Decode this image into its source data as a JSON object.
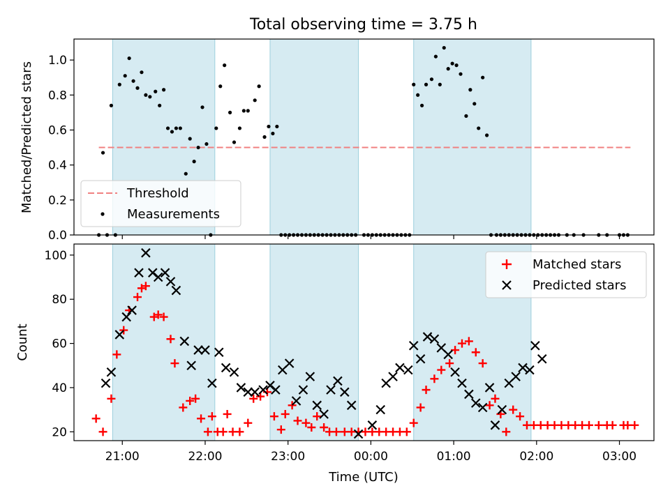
{
  "figure": {
    "title": "Total observing time = 3.75 h",
    "xlabel": "Time (UTC)",
    "x_ticks": [
      "21:00",
      "22:00",
      "23:00",
      "00:00",
      "01:00",
      "02:00",
      "03:00"
    ]
  },
  "chart_data": [
    {
      "type": "scatter",
      "ylabel": "Matched/Predicted stars",
      "ylim": [
        0,
        1.12
      ],
      "xlim": [
        "20:25",
        "03:25"
      ],
      "y_ticks": [
        "0.0",
        "0.2",
        "0.4",
        "0.6",
        "0.8",
        "1.0"
      ],
      "grid": false,
      "legend_position": "lower-left",
      "shaded_intervals": [
        [
          "20:53",
          "22:07"
        ],
        [
          "22:47",
          "23:51"
        ],
        [
          "00:31",
          "01:56"
        ]
      ],
      "threshold": {
        "name": "Threshold",
        "value": 0.5,
        "x_start": "20:43",
        "x_end": "03:08",
        "color": "#f08080"
      },
      "series": [
        {
          "name": "Measurements",
          "color": "#000000",
          "marker": "dot",
          "x": [
            "20:43",
            "20:46",
            "20:49",
            "20:52",
            "20:55",
            "20:58",
            "21:02",
            "21:05",
            "21:08",
            "21:11",
            "21:14",
            "21:17",
            "21:20",
            "21:24",
            "21:27",
            "21:30",
            "21:33",
            "21:36",
            "21:39",
            "21:42",
            "21:46",
            "21:49",
            "21:52",
            "21:55",
            "21:58",
            "22:01",
            "22:04",
            "22:08",
            "22:11",
            "22:14",
            "22:18",
            "22:21",
            "22:25",
            "22:28",
            "22:31",
            "22:36",
            "22:39",
            "22:43",
            "22:46",
            "22:49",
            "22:52",
            "22:55",
            "22:58",
            "23:01",
            "23:04",
            "23:07",
            "23:10",
            "23:13",
            "23:16",
            "23:19",
            "23:22",
            "23:25",
            "23:28",
            "23:31",
            "23:34",
            "23:37",
            "23:40",
            "23:43",
            "23:46",
            "23:49",
            "23:55",
            "23:58",
            "00:01",
            "00:04",
            "00:07",
            "00:10",
            "00:13",
            "00:16",
            "00:19",
            "00:22",
            "00:25",
            "00:28",
            "00:31",
            "00:34",
            "00:37",
            "00:40",
            "00:44",
            "00:47",
            "00:50",
            "00:53",
            "00:56",
            "00:59",
            "01:02",
            "01:05",
            "01:09",
            "01:12",
            "01:15",
            "01:18",
            "01:21",
            "01:24",
            "01:27",
            "01:31",
            "01:34",
            "01:37",
            "01:40",
            "01:43",
            "01:46",
            "01:49",
            "01:52",
            "01:55",
            "01:58",
            "02:01",
            "02:04",
            "02:07",
            "02:10",
            "02:13",
            "02:16",
            "02:22",
            "02:27",
            "02:34",
            "02:45",
            "02:51",
            "03:00",
            "03:03",
            "03:06"
          ],
          "y": [
            0.0,
            0.47,
            0.0,
            0.74,
            0.0,
            0.86,
            0.91,
            1.01,
            0.88,
            0.84,
            0.93,
            0.8,
            0.79,
            0.82,
            0.74,
            0.83,
            0.61,
            0.59,
            0.61,
            0.61,
            0.35,
            0.55,
            0.42,
            0.5,
            0.73,
            0.52,
            0.0,
            0.61,
            0.85,
            0.97,
            0.7,
            0.53,
            0.61,
            0.71,
            0.71,
            0.77,
            0.85,
            0.56,
            0.62,
            0.58,
            0.62,
            0.0,
            0.0,
            0.0,
            0.0,
            0.0,
            0.0,
            0.0,
            0.0,
            0.0,
            0.0,
            0.0,
            0.0,
            0.0,
            0.0,
            0.0,
            0.0,
            0.0,
            0.0,
            0.0,
            0.0,
            0.0,
            0.0,
            0.0,
            0.0,
            0.0,
            0.0,
            0.0,
            0.0,
            0.0,
            0.0,
            0.0,
            0.86,
            0.8,
            0.74,
            0.86,
            0.89,
            1.02,
            0.86,
            1.07,
            0.95,
            0.98,
            0.97,
            0.92,
            0.68,
            0.83,
            0.75,
            0.61,
            0.9,
            0.57,
            0.0,
            0.0,
            0.0,
            0.0,
            0.0,
            0.0,
            0.0,
            0.0,
            0.0,
            0.0,
            0.0,
            0.0,
            0.0,
            0.0,
            0.0,
            0.0,
            0.0,
            0.0,
            0.0,
            0.0,
            0.0,
            0.0,
            0.0,
            0.0,
            0.0
          ]
        }
      ]
    },
    {
      "type": "scatter",
      "ylabel": "Count",
      "ylim": [
        16,
        105
      ],
      "xlim": [
        "20:25",
        "03:25"
      ],
      "y_ticks": [
        "20",
        "40",
        "60",
        "80",
        "100"
      ],
      "grid": false,
      "legend_position": "top-right",
      "shaded_intervals": [
        [
          "20:53",
          "22:07"
        ],
        [
          "22:47",
          "23:51"
        ],
        [
          "00:31",
          "01:56"
        ]
      ],
      "series": [
        {
          "name": "Matched stars",
          "color": "#ff0000",
          "marker": "plus",
          "x": [
            "20:41",
            "20:46",
            "20:52",
            "20:56",
            "21:01",
            "21:05",
            "21:11",
            "21:14",
            "21:17",
            "21:23",
            "21:26",
            "21:30",
            "21:35",
            "21:38",
            "21:44",
            "21:49",
            "21:53",
            "21:57",
            "22:02",
            "22:05",
            "22:09",
            "22:13",
            "22:16",
            "22:20",
            "22:25",
            "22:31",
            "22:35",
            "22:40",
            "22:45",
            "22:50",
            "22:55",
            "22:58",
            "23:03",
            "23:07",
            "23:13",
            "23:17",
            "23:21",
            "23:26",
            "23:30",
            "23:35",
            "23:41",
            "23:46",
            "23:51",
            "23:56",
            "24:01",
            "24:06",
            "24:11",
            "24:16",
            "24:21",
            "24:26",
            "24:31",
            "24:36",
            "24:40",
            "24:46",
            "24:51",
            "24:57",
            "25:01",
            "25:06",
            "25:11",
            "25:16",
            "25:21",
            "25:26",
            "25:30",
            "25:34",
            "25:38",
            "25:43",
            "25:48",
            "25:53",
            "25:58",
            "26:03",
            "26:08",
            "26:13",
            "26:18",
            "26:23",
            "26:28",
            "26:33",
            "26:38",
            "26:45",
            "26:51",
            "26:55",
            "27:03",
            "27:06",
            "27:11"
          ],
          "y": [
            26,
            20,
            35,
            55,
            66,
            75,
            81,
            85,
            86,
            72,
            73,
            72,
            62,
            51,
            31,
            34,
            35,
            26,
            20,
            27,
            20,
            20,
            28,
            20,
            20,
            24,
            35,
            36,
            38,
            27,
            21,
            28,
            32,
            25,
            24,
            22,
            27,
            22,
            20,
            20,
            20,
            20,
            20,
            20,
            20,
            20,
            20,
            20,
            20,
            20,
            24,
            31,
            39,
            44,
            48,
            51,
            57,
            60,
            61,
            56,
            51,
            32,
            35,
            28,
            20,
            30,
            27,
            23,
            23,
            23,
            23,
            23,
            23,
            23,
            23,
            23,
            23,
            23,
            23,
            23,
            23,
            23,
            23
          ]
        },
        {
          "name": "Predicted stars",
          "color": "#000000",
          "marker": "x",
          "x": [
            "20:48",
            "20:52",
            "20:58",
            "21:03",
            "21:07",
            "21:12",
            "21:17",
            "21:22",
            "21:26",
            "21:31",
            "21:35",
            "21:39",
            "21:45",
            "21:50",
            "21:55",
            "22:00",
            "22:05",
            "22:10",
            "22:15",
            "22:21",
            "22:26",
            "22:31",
            "22:36",
            "22:42",
            "22:47",
            "22:51",
            "22:56",
            "23:01",
            "23:06",
            "23:11",
            "23:16",
            "23:21",
            "23:26",
            "23:31",
            "23:36",
            "23:41",
            "23:46",
            "23:51",
            "24:01",
            "24:07",
            "24:11",
            "24:16",
            "24:21",
            "24:27",
            "24:31",
            "24:36",
            "24:41",
            "24:46",
            "24:51",
            "24:56",
            "25:01",
            "25:06",
            "25:11",
            "25:16",
            "25:21",
            "25:26",
            "25:30",
            "25:35",
            "25:40",
            "25:45",
            "25:50",
            "25:55",
            "25:59",
            "26:04"
          ],
          "y": [
            42,
            47,
            64,
            72,
            75,
            92,
            101,
            92,
            90,
            92,
            88,
            84,
            61,
            50,
            57,
            57,
            42,
            56,
            49,
            47,
            40,
            38,
            38,
            39,
            41,
            39,
            48,
            51,
            34,
            39,
            45,
            32,
            28,
            39,
            43,
            38,
            32,
            19,
            23,
            30,
            42,
            45,
            49,
            48,
            59,
            53,
            63,
            62,
            58,
            55,
            47,
            42,
            37,
            33,
            31,
            40,
            23,
            30,
            42,
            45,
            49,
            48,
            59,
            53
          ]
        }
      ]
    }
  ]
}
